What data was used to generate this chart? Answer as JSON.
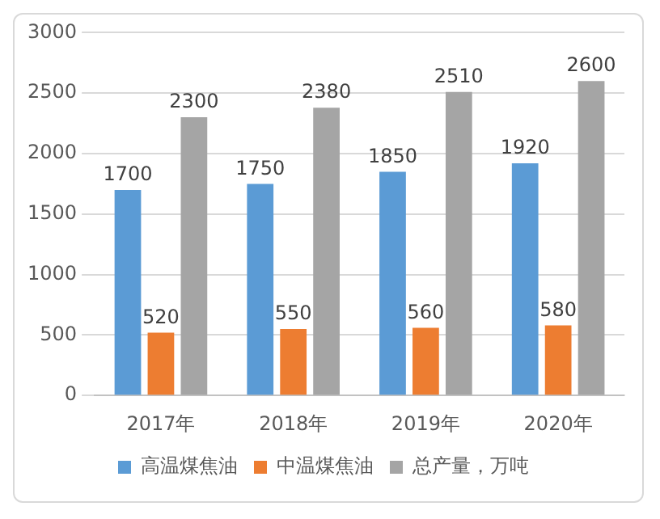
{
  "chart_data": {
    "type": "bar",
    "categories": [
      "2017年",
      "2018年",
      "2019年",
      "2020年"
    ],
    "series": [
      {
        "name": "高温煤焦油",
        "color": "#5b9bd5",
        "values": [
          1700,
          1750,
          1850,
          1920
        ]
      },
      {
        "name": "中温煤焦油",
        "color": "#ed7d31",
        "values": [
          520,
          550,
          560,
          580
        ]
      },
      {
        "name": "总产量，万吨",
        "color": "#a5a5a5",
        "values": [
          2300,
          2380,
          2510,
          2600
        ]
      }
    ],
    "ylim": [
      0,
      3000
    ],
    "yticks": [
      0,
      500,
      1000,
      1500,
      2000,
      2500,
      3000
    ],
    "grid": "y",
    "legend": "bottom",
    "data_labels": true
  }
}
